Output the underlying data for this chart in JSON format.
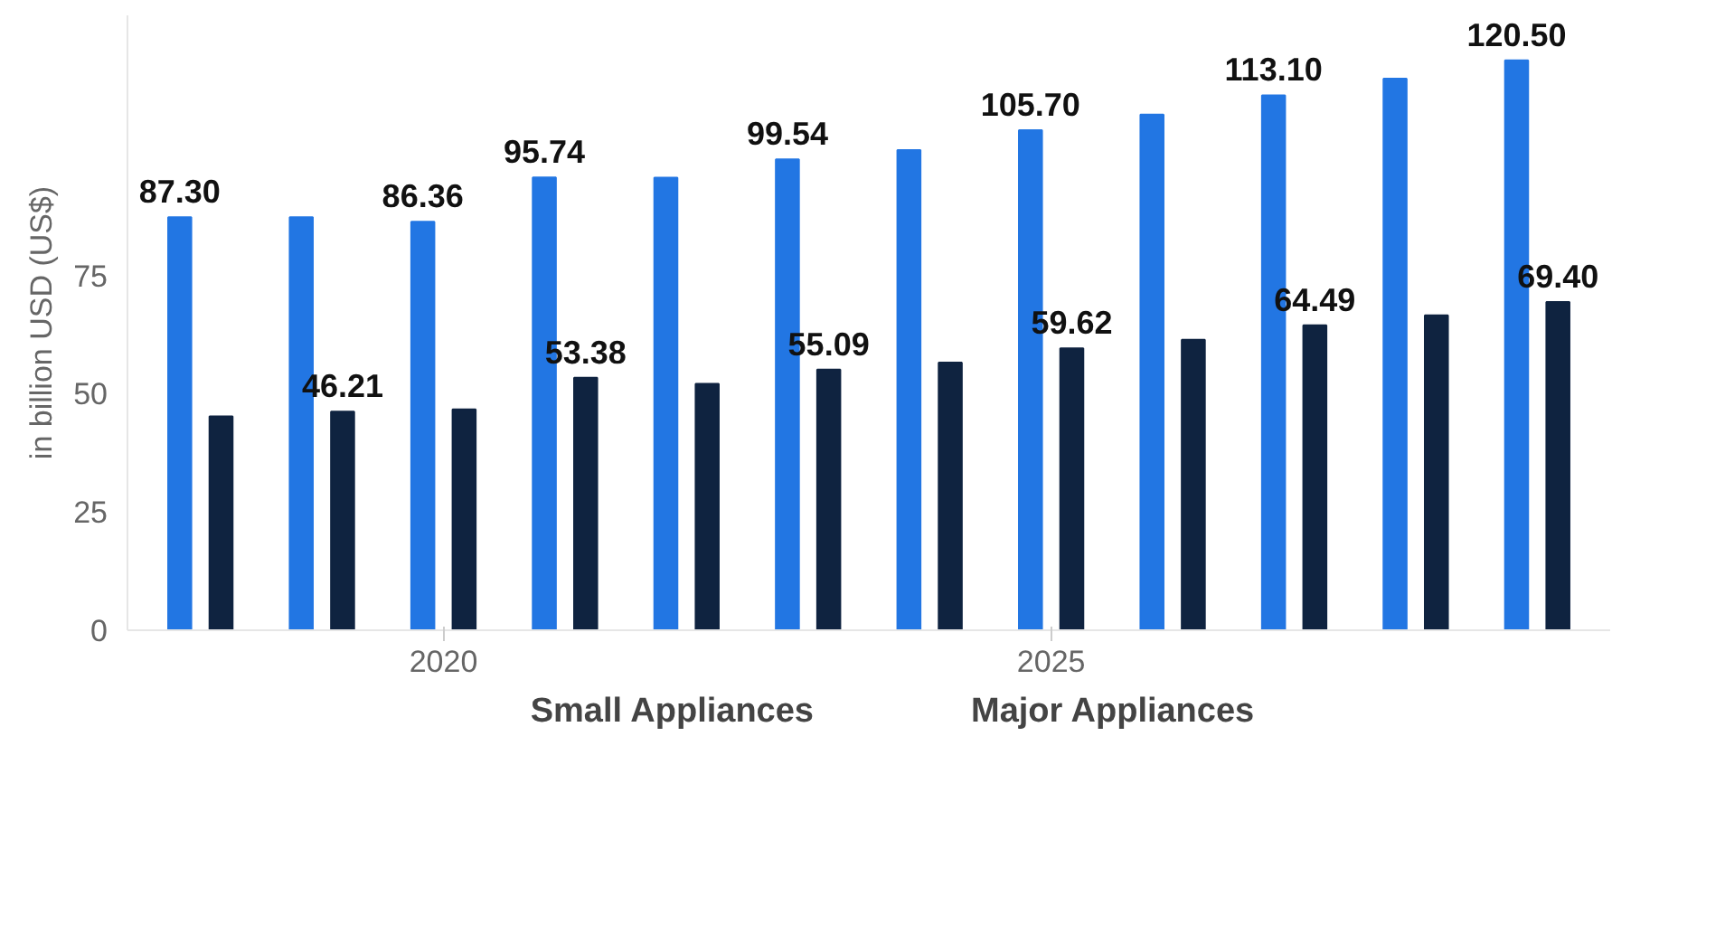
{
  "chart_data": {
    "type": "bar",
    "ylabel": "in billion USD (US$)",
    "x": [
      2018,
      2019,
      2020,
      2021,
      2022,
      2023,
      2024,
      2025,
      2026,
      2027,
      2028,
      2029
    ],
    "xlim": [
      2017.4,
      2029.6
    ],
    "xticks": [
      2020,
      2025
    ],
    "ylim": [
      0,
      130
    ],
    "yticks": [
      0,
      25,
      50,
      75
    ],
    "series": [
      {
        "name": "Major Appliances",
        "color": "#2276e3",
        "values": [
          87.3,
          87.3,
          86.36,
          95.74,
          95.7,
          99.54,
          101.5,
          105.7,
          109.0,
          113.1,
          116.6,
          120.5
        ],
        "value_labels": [
          "87.30",
          null,
          "86.36",
          "95.74",
          null,
          "99.54",
          null,
          "105.70",
          null,
          "113.10",
          null,
          "120.50"
        ]
      },
      {
        "name": "Small Appliances",
        "color": "#0f2340",
        "values": [
          45.2,
          46.21,
          46.7,
          53.38,
          52.1,
          55.09,
          56.6,
          59.62,
          61.4,
          64.49,
          66.6,
          69.4
        ],
        "value_labels": [
          null,
          "46.21",
          null,
          "53.38",
          null,
          "55.09",
          null,
          "59.62",
          null,
          "64.49",
          null,
          "69.40"
        ]
      }
    ],
    "grid": false,
    "legend": "bottom"
  }
}
